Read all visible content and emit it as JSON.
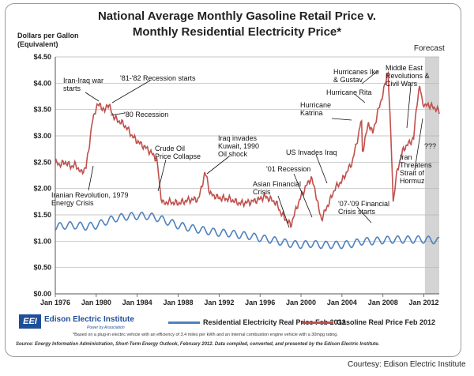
{
  "page": {
    "title_line1": "National Average Monthly Gasoline Retail Price v.",
    "title_line2": "Monthly Residential Electricity Price*",
    "y_label_line1": "Dollars per Gallon",
    "y_label_line2": "(Equivalent)",
    "forecast_label": "Forecast",
    "footnote": "*Based on a plug-in electric vehicle with an efficiency of 3.4 miles per kWh and an internal combustion engine vehicle with a 30mpg rating.",
    "source": "Source: Energy Information Administration, Short-Term Energy Outlook, February 2012. Data compiled, converted, and presented by the Edison Electric Institute.",
    "courtesy": "Courtesy: Edison Electric Institute",
    "logo_mark": "EEI",
    "logo_name": "Edison Electric Institute",
    "logo_tagline": "Power by Association",
    "colors": {
      "gasoline": "#c0504d",
      "electricity": "#4f81bd",
      "forecast": "#d4d4d4",
      "logo": "#1f4e99"
    }
  },
  "annotations": {
    "iran_iraq": "Iran-Iraq war\nstarts",
    "recession_8182": "'81-'82 Recession starts",
    "recession_80": "'80 Recession",
    "crude_collapse": "Crude Oil\nPrice Collapse",
    "iraq_kuwait": "Iraq invades\nKuwait, 1990\nOil shock",
    "iranian_revolution": "Iranian Revolution, 1979\nEnergy Crisis",
    "asian_crisis": "Asian Financial\nCrisis",
    "recession_01": "'01 Recession",
    "us_iraq": "US Invades Iraq",
    "katrina": "Hurricane\nKatrina",
    "rita": "Hurricane Rita",
    "ike_gustav": "Hurricanes Ike\n& Gustav",
    "middle_east": "Middle East\nRevolutions &\nCivil Wars",
    "hormuz": "Iran\nThreatens\nStrait of\nHormuz",
    "question": "???",
    "financial_crisis": "'07-'09 Financial\nCrisis starts"
  },
  "chart_data": {
    "type": "line",
    "title": "National Average Monthly Gasoline Retail Price v. Monthly Residential Electricity Price*",
    "ylabel": "Dollars per Gallon (Equivalent)",
    "xlabel": "",
    "xlim": [
      1976,
      2013.5
    ],
    "ylim": [
      0,
      4.5
    ],
    "y_ticks": [
      "$0.00",
      "$0.50",
      "$1.00",
      "$1.50",
      "$2.00",
      "$2.50",
      "$3.00",
      "$3.50",
      "$4.00",
      "$4.50"
    ],
    "y_tick_values": [
      0,
      0.5,
      1,
      1.5,
      2,
      2.5,
      3,
      3.5,
      4,
      4.5
    ],
    "x_ticks": [
      "Jan 1976",
      "Jan 1980",
      "Jan 1984",
      "Jan 1988",
      "Jan 1992",
      "Jan 1996",
      "Jan 2000",
      "Jan 2004",
      "Jan 2008",
      "Jan 2012"
    ],
    "x_tick_values": [
      1976,
      1980,
      1984,
      1988,
      1992,
      1996,
      2000,
      2004,
      2008,
      2012
    ],
    "forecast_range": [
      2012.1,
      2013.5
    ],
    "grid": true,
    "legend_position": "bottom",
    "series": [
      {
        "name": "Residential Electricity Real Price Feb 2012",
        "x": [
          1976,
          1977,
          1978,
          1979,
          1980,
          1981,
          1982,
          1983,
          1984,
          1985,
          1986,
          1987,
          1988,
          1989,
          1990,
          1991,
          1992,
          1993,
          1994,
          1995,
          1996,
          1997,
          1998,
          1999,
          2000,
          2001,
          2002,
          2003,
          2004,
          2005,
          2006,
          2007,
          2008,
          2009,
          2010,
          2011,
          2012,
          2013,
          2013.5
        ],
        "values": [
          1.27,
          1.3,
          1.3,
          1.28,
          1.3,
          1.38,
          1.44,
          1.47,
          1.48,
          1.48,
          1.44,
          1.37,
          1.3,
          1.26,
          1.22,
          1.19,
          1.16,
          1.15,
          1.12,
          1.1,
          1.06,
          1.03,
          0.99,
          0.95,
          0.93,
          0.95,
          0.93,
          0.93,
          0.93,
          0.95,
          1.0,
          1.0,
          1.02,
          1.03,
          1.03,
          1.03,
          1.03,
          1.02,
          1.0
        ],
        "seasonal_amplitude": 0.07
      },
      {
        "name": "Gasoline Real Price Feb 2012",
        "x": [
          1976,
          1976.5,
          1977,
          1977.5,
          1978,
          1978.5,
          1979,
          1979.3,
          1979.6,
          1980,
          1980.4,
          1980.8,
          1981.1,
          1981.3,
          1981.6,
          1982,
          1982.5,
          1983,
          1983.5,
          1984,
          1984.5,
          1985,
          1985.5,
          1985.9,
          1986.1,
          1986.3,
          1986.6,
          1987,
          1988,
          1989,
          1990,
          1990.6,
          1990.8,
          1991.1,
          1992,
          1993,
          1994,
          1995,
          1996,
          1996.4,
          1997,
          1997.6,
          1998,
          1998.5,
          1999,
          1999.5,
          2000,
          2000.5,
          2001,
          2001.4,
          2001.8,
          2002,
          2003,
          2003.3,
          2004,
          2005,
          2005.7,
          2005.9,
          2006,
          2006.6,
          2007,
          2007.5,
          2008,
          2008.5,
          2008.9,
          2009,
          2009.4,
          2010,
          2011,
          2011.3,
          2011.6,
          2011.8,
          2012.1,
          2012.4,
          2012.8,
          2013.2,
          2013.5
        ],
        "values": [
          2.48,
          2.46,
          2.5,
          2.42,
          2.45,
          2.3,
          2.4,
          2.8,
          3.25,
          3.55,
          3.6,
          3.45,
          3.62,
          3.55,
          3.4,
          3.3,
          3.25,
          3.15,
          3.0,
          2.9,
          2.82,
          2.75,
          2.65,
          2.55,
          2.25,
          1.85,
          1.7,
          1.75,
          1.72,
          1.78,
          1.8,
          2.28,
          2.22,
          1.9,
          1.82,
          1.8,
          1.72,
          1.74,
          1.8,
          1.85,
          1.8,
          1.72,
          1.55,
          1.42,
          1.3,
          1.6,
          1.85,
          2.05,
          2.2,
          1.95,
          1.55,
          1.42,
          1.85,
          2.0,
          2.15,
          2.5,
          3.1,
          3.35,
          2.7,
          3.25,
          3.05,
          3.45,
          3.8,
          4.22,
          2.4,
          1.75,
          2.35,
          2.75,
          2.95,
          3.6,
          3.95,
          3.7,
          3.55,
          3.6,
          3.55,
          3.52,
          3.45
        ]
      }
    ]
  }
}
